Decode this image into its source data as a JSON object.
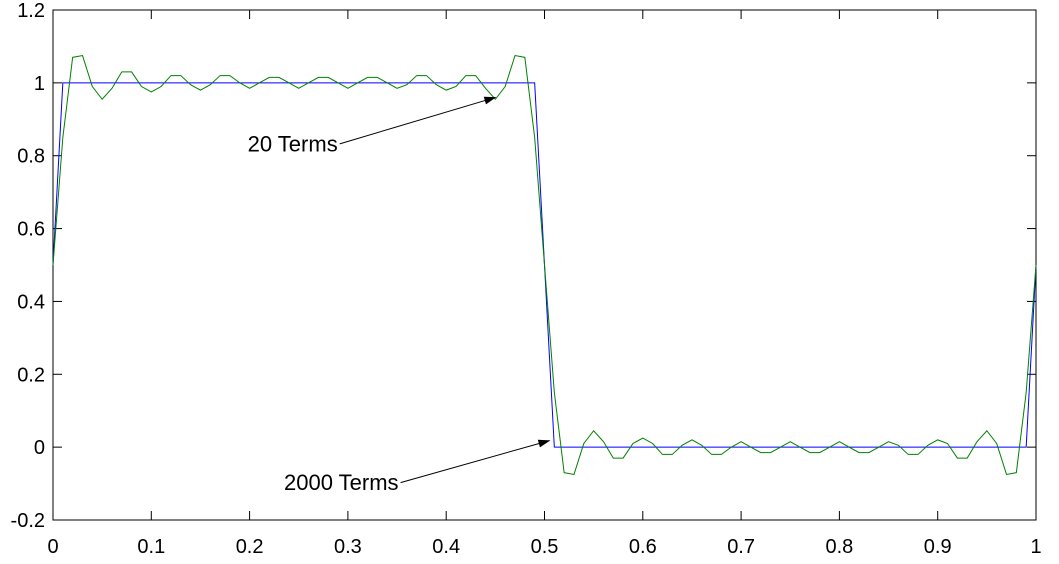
{
  "chart_data": {
    "type": "line",
    "title": "",
    "xlabel": "",
    "ylabel": "",
    "xlim": [
      0,
      1
    ],
    "ylim": [
      -0.2,
      1.2
    ],
    "x_ticks": [
      "0",
      "0.1",
      "0.2",
      "0.3",
      "0.4",
      "0.5",
      "0.6",
      "0.7",
      "0.8",
      "0.9",
      "1"
    ],
    "y_ticks": [
      "1.2",
      "1",
      "0.8",
      "0.6",
      "0.4",
      "0.2",
      "0",
      "-0.2"
    ],
    "grid": false,
    "series": [
      {
        "color": "#0000ff",
        "x": [
          0,
          0.01,
          0.49,
          0.51,
          0.99,
          1.0
        ],
        "y": [
          0.5,
          1.0,
          1.0,
          0.0,
          0.0,
          0.5
        ]
      },
      {
        "color": "#008000",
        "x": [
          0,
          0.01,
          0.02,
          0.03,
          0.04,
          0.05,
          0.06,
          0.07,
          0.08,
          0.09,
          0.1,
          0.11,
          0.12,
          0.13,
          0.14,
          0.15,
          0.16,
          0.17,
          0.18,
          0.19,
          0.2,
          0.21,
          0.22,
          0.23,
          0.24,
          0.25,
          0.26,
          0.27,
          0.28,
          0.29,
          0.3,
          0.31,
          0.32,
          0.33,
          0.34,
          0.35,
          0.36,
          0.37,
          0.38,
          0.39,
          0.4,
          0.41,
          0.42,
          0.43,
          0.44,
          0.45,
          0.46,
          0.47,
          0.48,
          0.49,
          0.5,
          0.51,
          0.52,
          0.53,
          0.54,
          0.55,
          0.56,
          0.57,
          0.58,
          0.59,
          0.6,
          0.61,
          0.62,
          0.63,
          0.64,
          0.65,
          0.66,
          0.67,
          0.68,
          0.69,
          0.7,
          0.71,
          0.72,
          0.73,
          0.74,
          0.75,
          0.76,
          0.77,
          0.78,
          0.79,
          0.8,
          0.81,
          0.82,
          0.83,
          0.84,
          0.85,
          0.86,
          0.87,
          0.88,
          0.89,
          0.9,
          0.91,
          0.92,
          0.93,
          0.94,
          0.95,
          0.96,
          0.97,
          0.98,
          0.99,
          1.0
        ],
        "y": [
          0.5,
          0.85,
          1.07,
          1.075,
          0.99,
          0.955,
          0.985,
          1.03,
          1.03,
          0.99,
          0.975,
          0.99,
          1.02,
          1.02,
          0.995,
          0.98,
          0.995,
          1.02,
          1.02,
          1.0,
          0.985,
          1.0,
          1.015,
          1.015,
          1.0,
          0.985,
          1.0,
          1.015,
          1.015,
          1.0,
          0.985,
          1.0,
          1.015,
          1.015,
          1.0,
          0.985,
          0.995,
          1.02,
          1.02,
          0.995,
          0.98,
          0.99,
          1.02,
          1.02,
          0.985,
          0.955,
          0.99,
          1.075,
          1.07,
          0.85,
          0.5,
          0.15,
          -0.07,
          -0.075,
          0.01,
          0.045,
          0.015,
          -0.03,
          -0.03,
          0.01,
          0.025,
          0.01,
          -0.02,
          -0.02,
          0.005,
          0.02,
          0.005,
          -0.02,
          -0.02,
          0.0,
          0.015,
          0.0,
          -0.015,
          -0.015,
          0.0,
          0.015,
          0.0,
          -0.015,
          -0.015,
          0.0,
          0.015,
          0.0,
          -0.015,
          -0.015,
          0.0,
          0.015,
          0.005,
          -0.02,
          -0.02,
          0.005,
          0.02,
          0.01,
          -0.03,
          -0.03,
          0.015,
          0.045,
          0.01,
          -0.075,
          -0.07,
          0.15,
          0.5
        ]
      }
    ],
    "annotations": [
      {
        "text": "20 Terms",
        "x": 0.198,
        "y": 0.812,
        "arrow_to": [
          0.45,
          0.96
        ]
      },
      {
        "text": "2000 Terms",
        "x": 0.235,
        "y": -0.118,
        "arrow_to": [
          0.505,
          0.018
        ]
      }
    ]
  },
  "colors": {
    "axes": "#000000",
    "arrow": "#000000"
  }
}
